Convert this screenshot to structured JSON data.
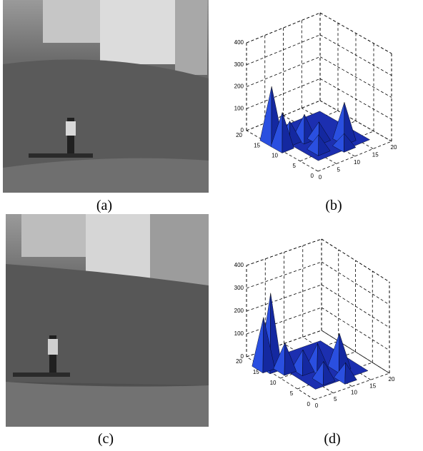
{
  "figure": {
    "panels": [
      {
        "caption": "(a)"
      },
      {
        "caption": "(b)",
        "type": "surface",
        "xticks": [
          0,
          5,
          10,
          15,
          20
        ],
        "yticks": [
          0,
          5,
          10,
          15,
          20
        ],
        "zticks": [
          0,
          100,
          200,
          300,
          400
        ],
        "xlim": [
          0,
          20
        ],
        "ylim": [
          0,
          20
        ],
        "zlim": [
          0,
          400
        ],
        "peaks": [
          {
            "x": 1,
            "y": 14,
            "z": 250
          },
          {
            "x": 1,
            "y": 11,
            "z": 160
          },
          {
            "x": 4,
            "y": 12,
            "z": 90
          },
          {
            "x": 7,
            "y": 11,
            "z": 110
          },
          {
            "x": 9,
            "y": 9,
            "z": 80
          },
          {
            "x": 13,
            "y": 6,
            "z": 170
          },
          {
            "x": 6,
            "y": 6,
            "z": 70
          },
          {
            "x": 11,
            "y": 4,
            "z": 60
          }
        ]
      },
      {
        "caption": "(c)"
      },
      {
        "caption": "(d)",
        "type": "surface",
        "xticks": [
          0,
          5,
          10,
          15,
          20
        ],
        "yticks": [
          0,
          5,
          10,
          15,
          20
        ],
        "zticks": [
          0,
          100,
          200,
          300,
          400
        ],
        "xlim": [
          0,
          20
        ],
        "ylim": [
          0,
          20
        ],
        "zlim": [
          0,
          400
        ],
        "peaks": [
          {
            "x": 1,
            "y": 14,
            "z": 330
          },
          {
            "x": 0,
            "y": 15,
            "z": 220
          },
          {
            "x": 3,
            "y": 12,
            "z": 120
          },
          {
            "x": 6,
            "y": 10,
            "z": 90
          },
          {
            "x": 9,
            "y": 9,
            "z": 110
          },
          {
            "x": 13,
            "y": 7,
            "z": 150
          },
          {
            "x": 7,
            "y": 5,
            "z": 80
          },
          {
            "x": 11,
            "y": 3,
            "z": 70
          }
        ]
      }
    ]
  }
}
